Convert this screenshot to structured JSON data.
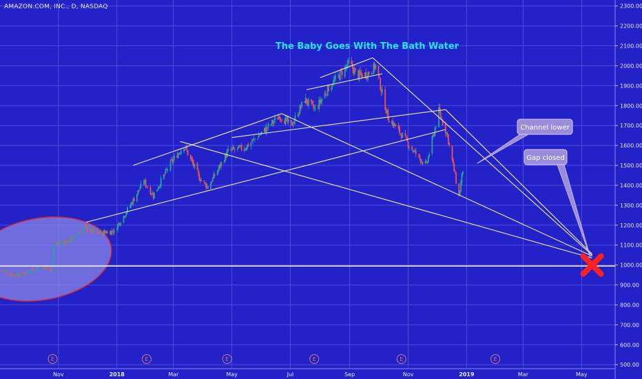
{
  "symbol_line": "AMAZON.COM, INC., D, NASDAQ",
  "chart_data": {
    "type": "candlestick",
    "title": "The Baby Goes With The Bath Water",
    "y_ticks": [
      500,
      600,
      700,
      800,
      900,
      1000,
      1100,
      1200,
      1300,
      1400,
      1500,
      1600,
      1700,
      1800,
      1900,
      2000,
      2100,
      2200,
      2300
    ],
    "y_tick_labels": [
      "500.00",
      "600.00",
      "700.00",
      "800.00",
      "900.00",
      "1000.00",
      "1100.00",
      "1200.00",
      "1300.00",
      "1400.00",
      "1500.00",
      "1600.00",
      "1700.00",
      "1800.00",
      "1900.00",
      "2000.00",
      "2100.00",
      "2200.00",
      "2300.00"
    ],
    "ylim": [
      480,
      2330
    ],
    "x_ticks": [
      {
        "date": "2017-11-01",
        "label": "Nov"
      },
      {
        "date": "2018-01-01",
        "label": "2018"
      },
      {
        "date": "2018-03-01",
        "label": "Mar"
      },
      {
        "date": "2018-05-01",
        "label": "May"
      },
      {
        "date": "2018-07-01",
        "label": "Jul"
      },
      {
        "date": "2018-09-01",
        "label": "Sep"
      },
      {
        "date": "2018-11-01",
        "label": "Nov"
      },
      {
        "date": "2019-01-01",
        "label": "2019"
      },
      {
        "date": "2019-03-01",
        "label": "Mar"
      },
      {
        "date": "2019-05-01",
        "label": "May"
      }
    ],
    "xlim": [
      "2017-09-01",
      "2019-06-05"
    ],
    "grid": true,
    "earnings_markers": [
      {
        "date": "2017-10-26",
        "label": "E"
      },
      {
        "date": "2018-02-01",
        "label": "E"
      },
      {
        "date": "2018-04-26",
        "label": "E"
      },
      {
        "date": "2018-07-26",
        "label": "E"
      },
      {
        "date": "2018-10-25",
        "label": "E"
      },
      {
        "date": "2019-01-31",
        "label": "E"
      }
    ],
    "price_path": [
      {
        "date": "2017-09-01",
        "value": 975
      },
      {
        "date": "2017-09-15",
        "value": 950
      },
      {
        "date": "2017-09-28",
        "value": 958
      },
      {
        "date": "2017-10-12",
        "value": 1000
      },
      {
        "date": "2017-10-25",
        "value": 975
      },
      {
        "date": "2017-10-27",
        "value": 1100
      },
      {
        "date": "2017-11-15",
        "value": 1130
      },
      {
        "date": "2017-11-28",
        "value": 1190
      },
      {
        "date": "2017-12-10",
        "value": 1160
      },
      {
        "date": "2017-12-29",
        "value": 1170
      },
      {
        "date": "2018-01-15",
        "value": 1300
      },
      {
        "date": "2018-01-29",
        "value": 1420
      },
      {
        "date": "2018-02-08",
        "value": 1350
      },
      {
        "date": "2018-02-26",
        "value": 1510
      },
      {
        "date": "2018-03-12",
        "value": 1600
      },
      {
        "date": "2018-03-28",
        "value": 1440
      },
      {
        "date": "2018-04-06",
        "value": 1390
      },
      {
        "date": "2018-04-27",
        "value": 1570
      },
      {
        "date": "2018-05-15",
        "value": 1590
      },
      {
        "date": "2018-06-05",
        "value": 1680
      },
      {
        "date": "2018-06-20",
        "value": 1750
      },
      {
        "date": "2018-07-02",
        "value": 1700
      },
      {
        "date": "2018-07-16",
        "value": 1830
      },
      {
        "date": "2018-07-27",
        "value": 1780
      },
      {
        "date": "2018-08-10",
        "value": 1890
      },
      {
        "date": "2018-08-31",
        "value": 2010
      },
      {
        "date": "2018-09-10",
        "value": 1950
      },
      {
        "date": "2018-09-20",
        "value": 1960
      },
      {
        "date": "2018-09-28",
        "value": 2000
      },
      {
        "date": "2018-10-11",
        "value": 1740
      },
      {
        "date": "2018-10-26",
        "value": 1650
      },
      {
        "date": "2018-11-05",
        "value": 1580
      },
      {
        "date": "2018-11-20",
        "value": 1500
      },
      {
        "date": "2018-12-03",
        "value": 1770
      },
      {
        "date": "2018-12-12",
        "value": 1650
      },
      {
        "date": "2018-12-24",
        "value": 1345
      },
      {
        "date": "2018-12-28",
        "value": 1480
      }
    ],
    "trend_lines": [
      {
        "name": "horizontal-gap-line",
        "from": {
          "date": "2017-09-01",
          "value": 995
        },
        "to": {
          "date": "2019-06-05",
          "value": 995
        }
      },
      {
        "name": "channel-lower-line",
        "from": {
          "date": "2017-11-30",
          "value": 1215
        },
        "to": {
          "date": "2018-12-10",
          "value": 1680
        }
      },
      {
        "name": "channel-upper-line",
        "from": {
          "date": "2018-01-18",
          "value": 1500
        },
        "to": {
          "date": "2018-06-22",
          "value": 1760
        }
      },
      {
        "name": "channel-upper-line-2",
        "from": {
          "date": "2018-05-01",
          "value": 1640
        },
        "to": {
          "date": "2018-12-10",
          "value": 1780
        }
      },
      {
        "name": "channel-top-line",
        "from": {
          "date": "2018-07-18",
          "value": 1880
        },
        "to": {
          "date": "2018-10-05",
          "value": 1960
        }
      },
      {
        "name": "peak-upper-line",
        "from": {
          "date": "2018-08-01",
          "value": 1940
        },
        "to": {
          "date": "2018-09-25",
          "value": 2040
        }
      },
      {
        "name": "fan-line-march",
        "from": {
          "date": "2018-03-08",
          "value": 1620
        },
        "to": {
          "date": "2019-05-12",
          "value": 1035
        }
      },
      {
        "name": "fan-line-june",
        "from": {
          "date": "2018-06-22",
          "value": 1760
        },
        "to": {
          "date": "2019-05-12",
          "value": 1045
        }
      },
      {
        "name": "fan-line-september",
        "from": {
          "date": "2018-09-25",
          "value": 2040
        },
        "to": {
          "date": "2019-05-12",
          "value": 1050
        }
      },
      {
        "name": "fan-line-december",
        "from": {
          "date": "2018-12-10",
          "value": 1780
        },
        "to": {
          "date": "2019-05-12",
          "value": 1055
        }
      }
    ],
    "annotations": [
      {
        "name": "channel-lower",
        "text": "Channel lower",
        "pointer": {
          "date": "2019-01-12",
          "value": 1510
        }
      },
      {
        "name": "gap-closed",
        "text": "Gap closed",
        "pointer": {
          "date": "2019-05-10",
          "value": 1040
        }
      }
    ],
    "target_marker": {
      "date": "2019-05-12",
      "value": 1000
    },
    "gap_ellipse": {
      "center_date": "2017-10-14",
      "center_value": 1030,
      "span_days": 74,
      "span_value": 410
    }
  }
}
